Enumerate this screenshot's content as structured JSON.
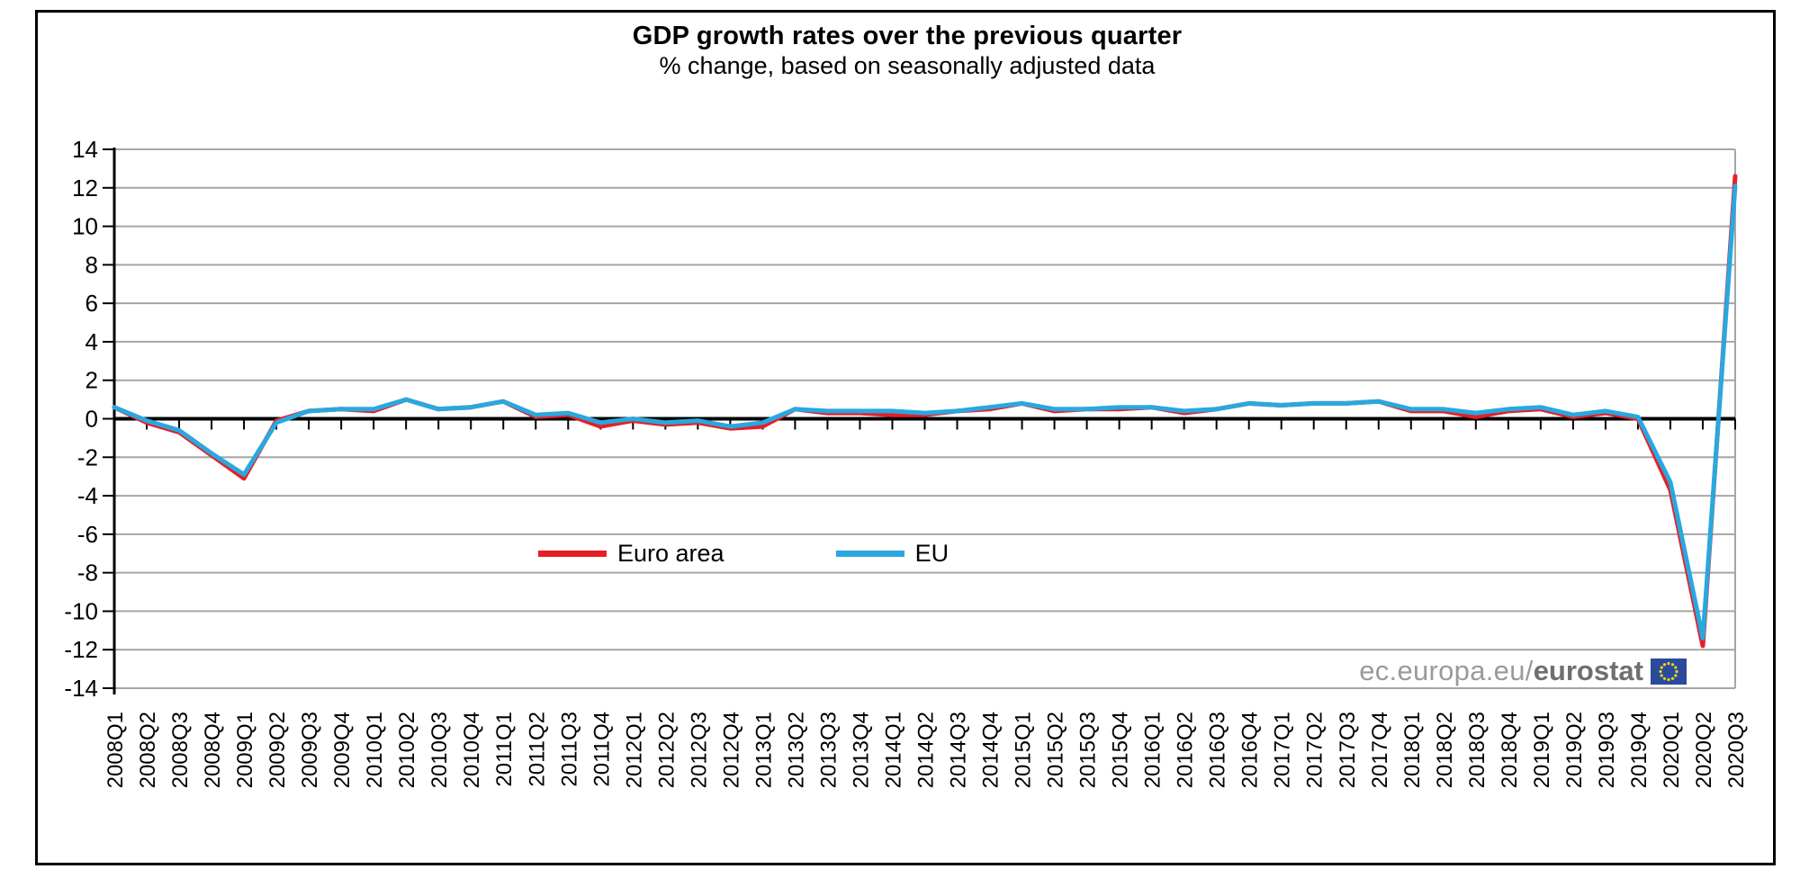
{
  "window": {
    "kind": "statistical-chart-image",
    "background": "#ffffff",
    "frame_border_color": "#000000"
  },
  "watermark": {
    "prefix": "ec.europa.eu/",
    "bold": "eurostat",
    "flag_blue": "#2a4b9b",
    "flag_star_yellow": "#f7d117"
  },
  "style_colors": {
    "gridline": "#a6a6a6",
    "axis": "#000000",
    "tick_label": "#000000"
  },
  "chart_data": {
    "type": "line",
    "title": "GDP growth rates over the previous quarter",
    "subtitle": "% change, based on seasonally adjusted data",
    "xlabel": "",
    "ylabel": "",
    "ylim": [
      -14,
      14
    ],
    "ytick_step": 2,
    "grid": "horizontal-on",
    "legend_position": "inside-lower-center",
    "categories": [
      "2008Q1",
      "2008Q2",
      "2008Q3",
      "2008Q4",
      "2009Q1",
      "2009Q2",
      "2009Q3",
      "2009Q4",
      "2010Q1",
      "2010Q2",
      "2010Q3",
      "2010Q4",
      "2011Q1",
      "2011Q2",
      "2011Q3",
      "2011Q4",
      "2012Q1",
      "2012Q2",
      "2012Q3",
      "2012Q4",
      "2013Q1",
      "2013Q2",
      "2013Q3",
      "2013Q4",
      "2014Q1",
      "2014Q2",
      "2014Q3",
      "2014Q4",
      "2015Q1",
      "2015Q2",
      "2015Q3",
      "2015Q4",
      "2016Q1",
      "2016Q2",
      "2016Q3",
      "2016Q4",
      "2017Q1",
      "2017Q2",
      "2017Q3",
      "2017Q4",
      "2018Q1",
      "2018Q2",
      "2018Q3",
      "2018Q4",
      "2019Q1",
      "2019Q2",
      "2019Q3",
      "2019Q4",
      "2020Q1",
      "2020Q2",
      "2020Q3"
    ],
    "series": [
      {
        "name": "Euro area",
        "color": "#e81e25",
        "values": [
          0.6,
          -0.2,
          -0.7,
          -1.9,
          -3.1,
          -0.1,
          0.4,
          0.5,
          0.4,
          1.0,
          0.5,
          0.6,
          0.9,
          0.1,
          0.2,
          -0.4,
          -0.1,
          -0.3,
          -0.2,
          -0.5,
          -0.4,
          0.5,
          0.3,
          0.3,
          0.2,
          0.2,
          0.4,
          0.5,
          0.8,
          0.4,
          0.5,
          0.5,
          0.6,
          0.3,
          0.5,
          0.8,
          0.7,
          0.8,
          0.8,
          0.9,
          0.4,
          0.4,
          0.1,
          0.4,
          0.5,
          0.1,
          0.3,
          0.0,
          -3.7,
          -11.8,
          12.6
        ]
      },
      {
        "name": "EU",
        "color": "#29a8df",
        "values": [
          0.6,
          -0.1,
          -0.6,
          -1.8,
          -2.9,
          -0.2,
          0.4,
          0.5,
          0.5,
          1.0,
          0.5,
          0.6,
          0.9,
          0.2,
          0.3,
          -0.2,
          0.0,
          -0.2,
          -0.1,
          -0.4,
          -0.2,
          0.5,
          0.4,
          0.4,
          0.4,
          0.3,
          0.4,
          0.6,
          0.8,
          0.5,
          0.5,
          0.6,
          0.6,
          0.4,
          0.5,
          0.8,
          0.7,
          0.8,
          0.8,
          0.9,
          0.5,
          0.5,
          0.3,
          0.5,
          0.6,
          0.2,
          0.4,
          0.1,
          -3.3,
          -11.4,
          12.1
        ]
      }
    ]
  }
}
